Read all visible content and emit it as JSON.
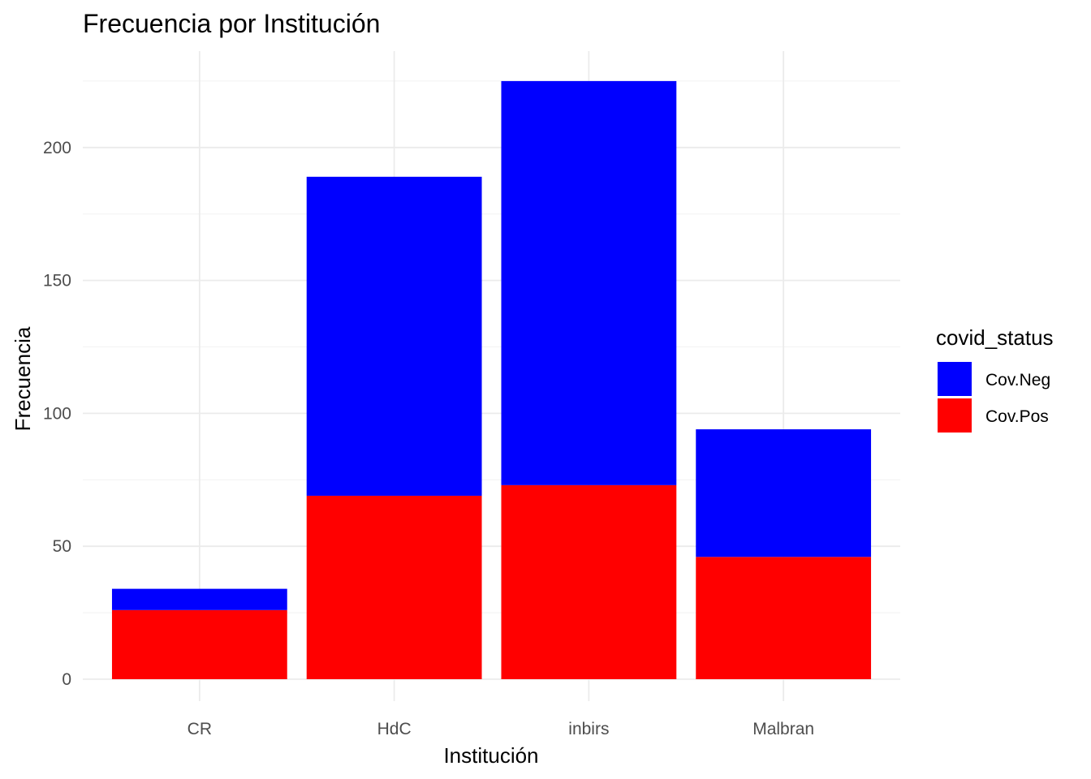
{
  "chart_data": {
    "type": "bar",
    "stacked": true,
    "title": "Frecuencia por Institución",
    "xlabel": "Institución",
    "ylabel": "Frecuencia",
    "categories": [
      "CR",
      "HdC",
      "inbirs",
      "Malbran"
    ],
    "series": [
      {
        "name": "Cov.Pos",
        "color": "#ff0000",
        "values": [
          26,
          69,
          73,
          46
        ]
      },
      {
        "name": "Cov.Neg",
        "color": "#0000ff",
        "values": [
          8,
          120,
          152,
          48
        ]
      }
    ],
    "ylim": [
      0,
      236
    ],
    "yticks": [
      0,
      50,
      100,
      150,
      200
    ],
    "grid": true,
    "legend": {
      "title": "covid_status",
      "position": "right",
      "entries": [
        {
          "label": "Cov.Neg",
          "color": "#0000ff"
        },
        {
          "label": "Cov.Pos",
          "color": "#ff0000"
        }
      ]
    }
  }
}
